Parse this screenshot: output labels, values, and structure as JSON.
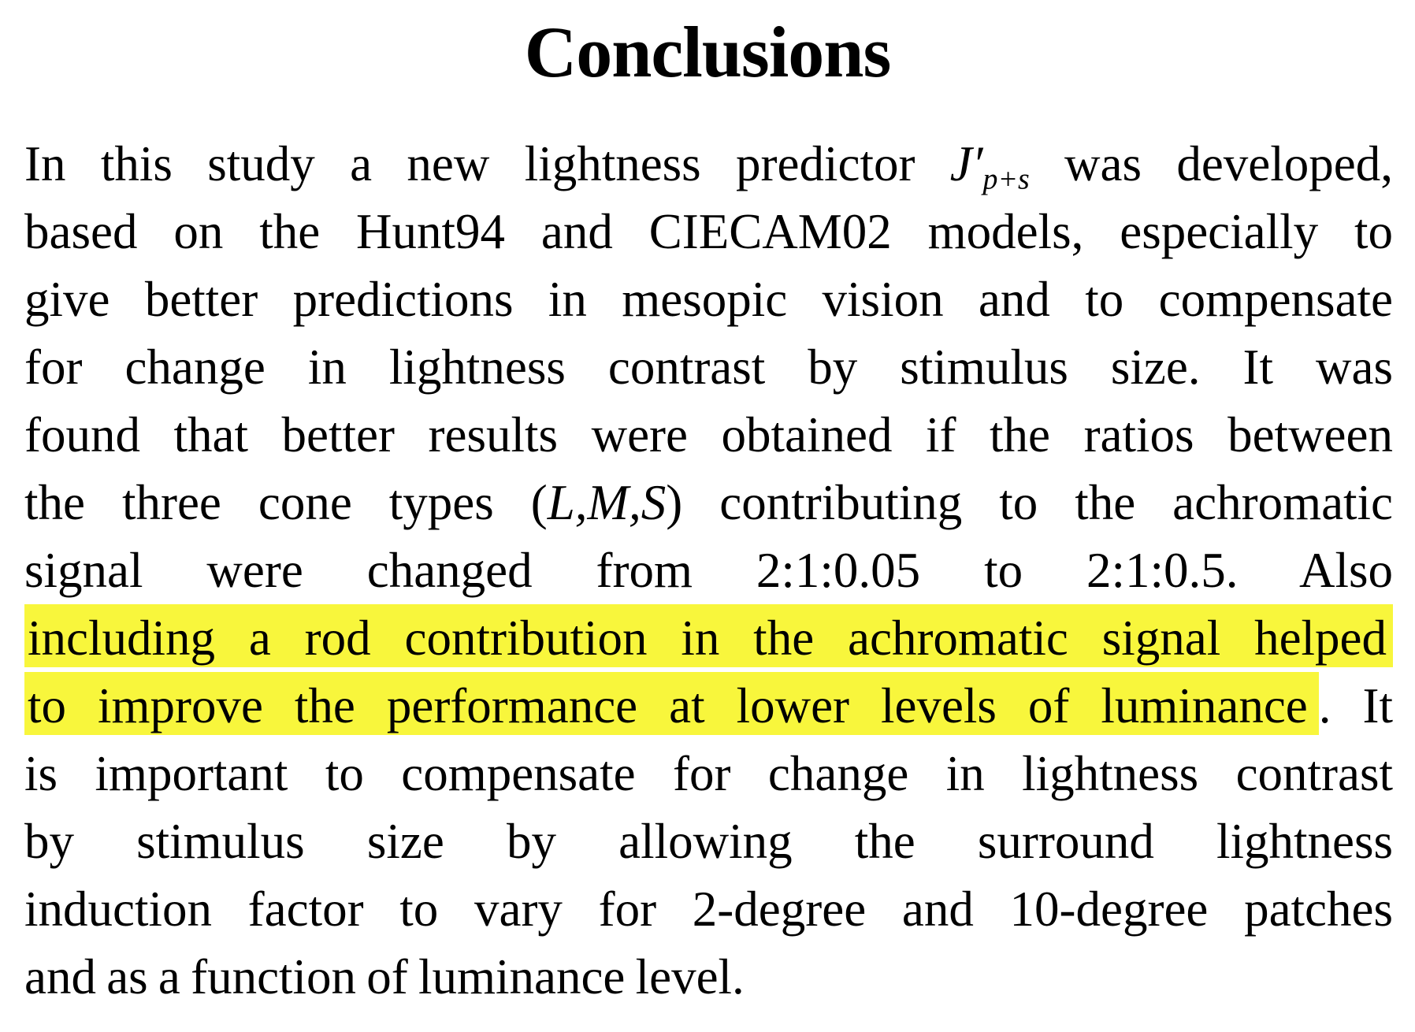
{
  "title": "Conclusions",
  "colors": {
    "background": "#ffffff",
    "text": "#000000",
    "highlight": "#f8f63c"
  },
  "paragraph": {
    "lines": [
      [
        {
          "t": "In this study a new lightness predictor "
        },
        {
          "t": "J′",
          "it": true
        },
        {
          "t": "p+s",
          "it": true,
          "sub": true
        },
        {
          "t": " was developed,"
        }
      ],
      [
        {
          "t": "based on the Hunt94 and CIECAM02 models, especially to"
        }
      ],
      [
        {
          "t": "give better predictions in mesopic vision and to compensate"
        }
      ],
      [
        {
          "t": "for change in lightness contrast by stimulus size. It was"
        }
      ],
      [
        {
          "t": "found that better results were obtained if the ratios between"
        }
      ],
      [
        {
          "t": "the three cone types ("
        },
        {
          "t": "L,M,S",
          "it": true
        },
        {
          "t": ") contributing to the achromatic"
        }
      ],
      [
        {
          "t": "signal were changed from 2:1:0.05 to 2:1:0.5. Also"
        }
      ],
      [
        {
          "t": "including a rod contribution in the achromatic signal helped",
          "hl": true
        }
      ],
      [
        {
          "t": "to improve the performance at lower levels of luminance",
          "hl": true,
          "hlEnd": true
        },
        {
          "t": ". It"
        }
      ],
      [
        {
          "t": "is important to compensate for change in lightness contrast"
        }
      ],
      [
        {
          "t": "by stimulus size by allowing the surround lightness"
        }
      ],
      [
        {
          "t": "induction factor to vary for 2-degree and 10-degree patches"
        }
      ],
      [
        {
          "t": "and as a function of luminance level."
        }
      ]
    ]
  }
}
